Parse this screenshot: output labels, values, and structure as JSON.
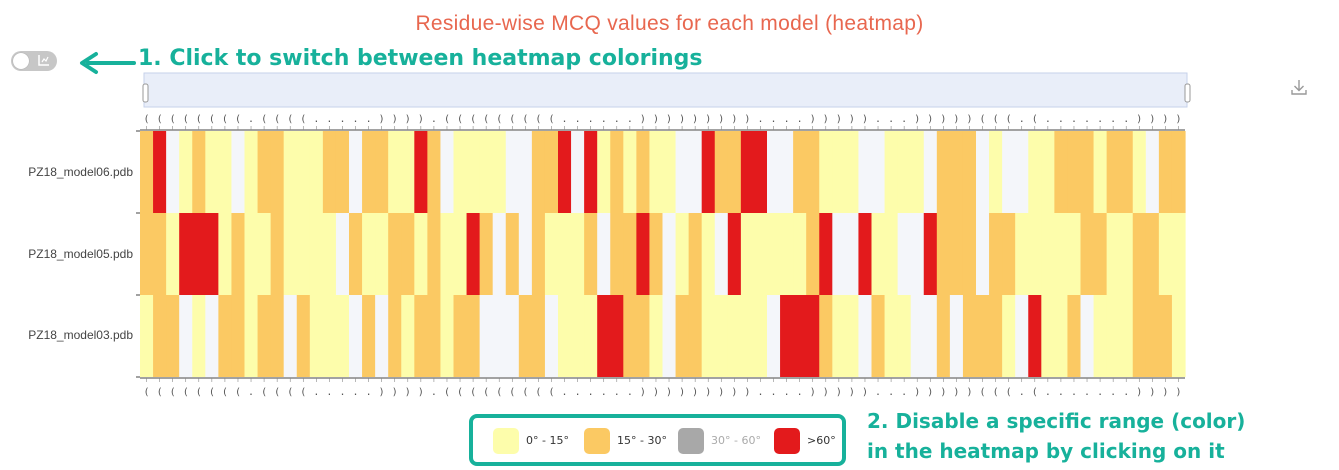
{
  "title": "Residue-wise MCQ values for each model (heatmap)",
  "toggle": {
    "icon": "chart-icon",
    "state": "off"
  },
  "annotations": {
    "step1": "1. Click to switch between heatmap colorings",
    "step2_line1": "2. Disable a specific range (color)",
    "step2_line2": "in the heatmap by clicking on it",
    "color": "#17b19b"
  },
  "legend": [
    {
      "label": "0° - 15°",
      "color": "#fdfdab",
      "enabled": true
    },
    {
      "label": "15° - 30°",
      "color": "#fbc963",
      "enabled": true
    },
    {
      "label": "30° - 60°",
      "color": "#a8a8a8",
      "enabled": false
    },
    {
      "label": ">60°",
      "color": "#e31a1c",
      "enabled": true
    }
  ],
  "chart_data": {
    "type": "heatmap",
    "title": "Residue-wise MCQ values for each model (heatmap)",
    "rows": [
      "PZ18_model06.pdb",
      "PZ18_model05.pdb",
      "PZ18_model03.pdb"
    ],
    "secondary_structure": "((((((((.((((.....)))).(((((((((......)))))))))....)))))...)))))(((.(.......))))",
    "cell_categories_legend": {
      "a": "0° - 15°",
      "b": "15° - 30°",
      "c": "30° - 60° (disabled, shown blank)",
      "d": ">60°"
    },
    "values": [
      "bdcabaacabbaaabbcbbaadbcaaaaccbbdcdababaaccdbbddccbbaaaccaaacbbbcaccaabbbabbacbbb",
      "bbadddabaabaaaacbaabbabaadbcbcbaaabcbbdbcabacdaaaaabdccdaaccdbbbcbbaaaaabbaabbaab",
      "abbcacbbabbcbaaacbcbabbabbcccbbcaaaddbbacbbaaaaacdddbaacbaaccbcbbbacdaabcaaabbbab"
    ]
  }
}
